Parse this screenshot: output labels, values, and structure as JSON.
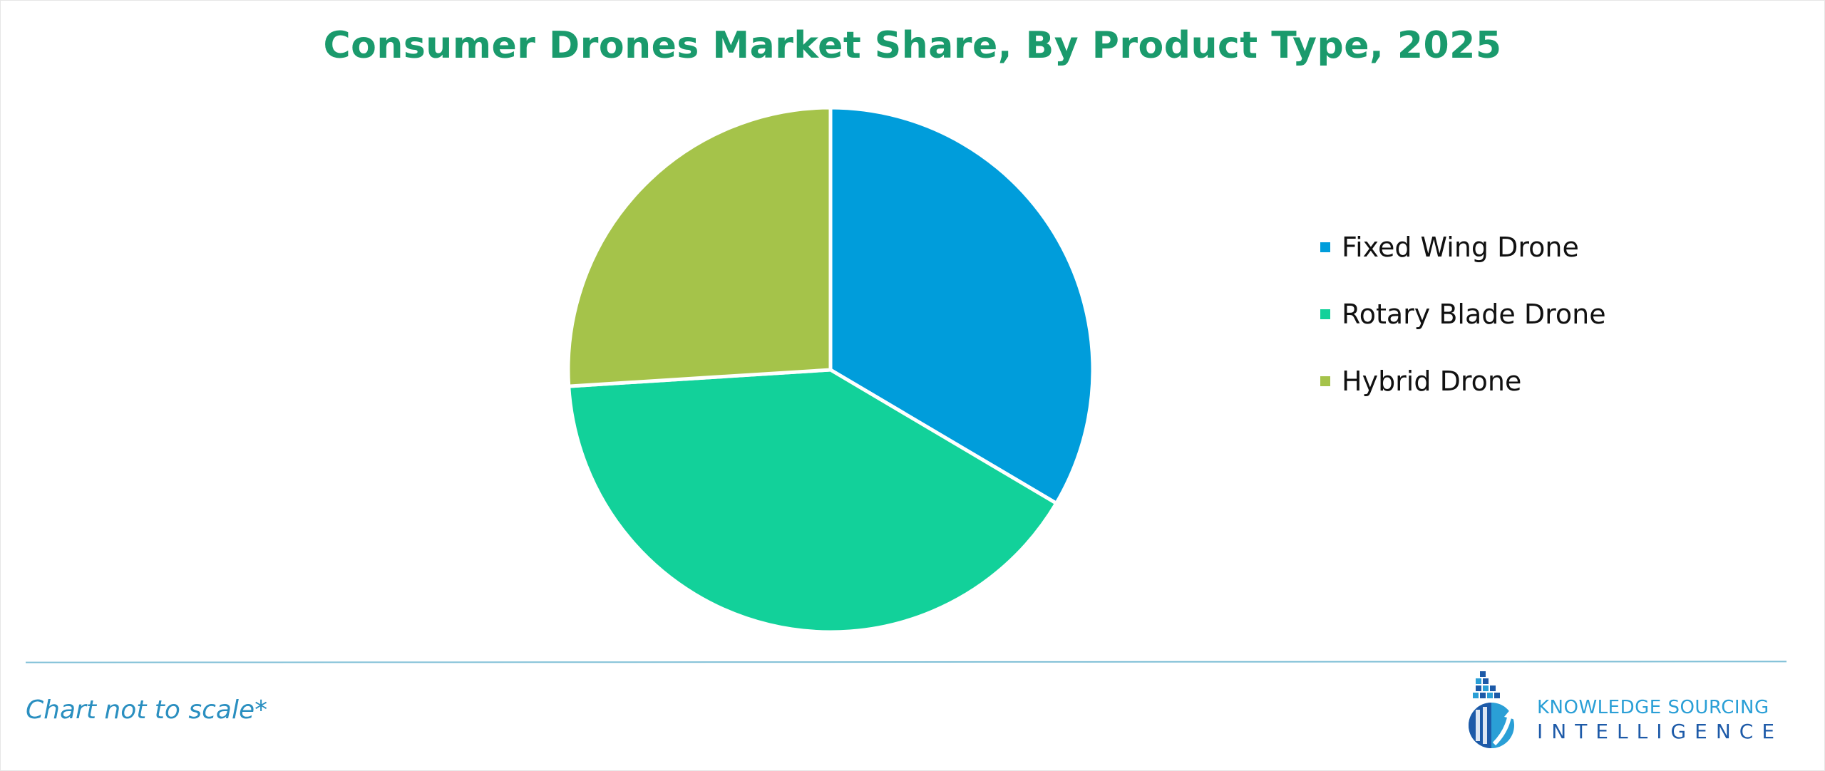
{
  "chart_data": {
    "type": "pie",
    "title": "Consumer Drones Market Share, By Product Type, 2025",
    "categories": [
      "Fixed Wing Drone",
      "Rotary Blade Drone",
      "Hybrid Drone"
    ],
    "values": [
      33.5,
      40.5,
      26.0
    ],
    "colors": [
      "#009ddb",
      "#12d19a",
      "#a5c34a"
    ],
    "legend_position": "right",
    "start_angle": "top, clockwise"
  },
  "footnote": "Chart not to scale*",
  "brand": {
    "line1": "KNOWLEDGE SOURCING",
    "line2": "INTELLIGENCE",
    "icon": "building-arrow-logo-icon",
    "colors": {
      "light": "#2a9fd6",
      "dark": "#1d5aa8"
    }
  }
}
